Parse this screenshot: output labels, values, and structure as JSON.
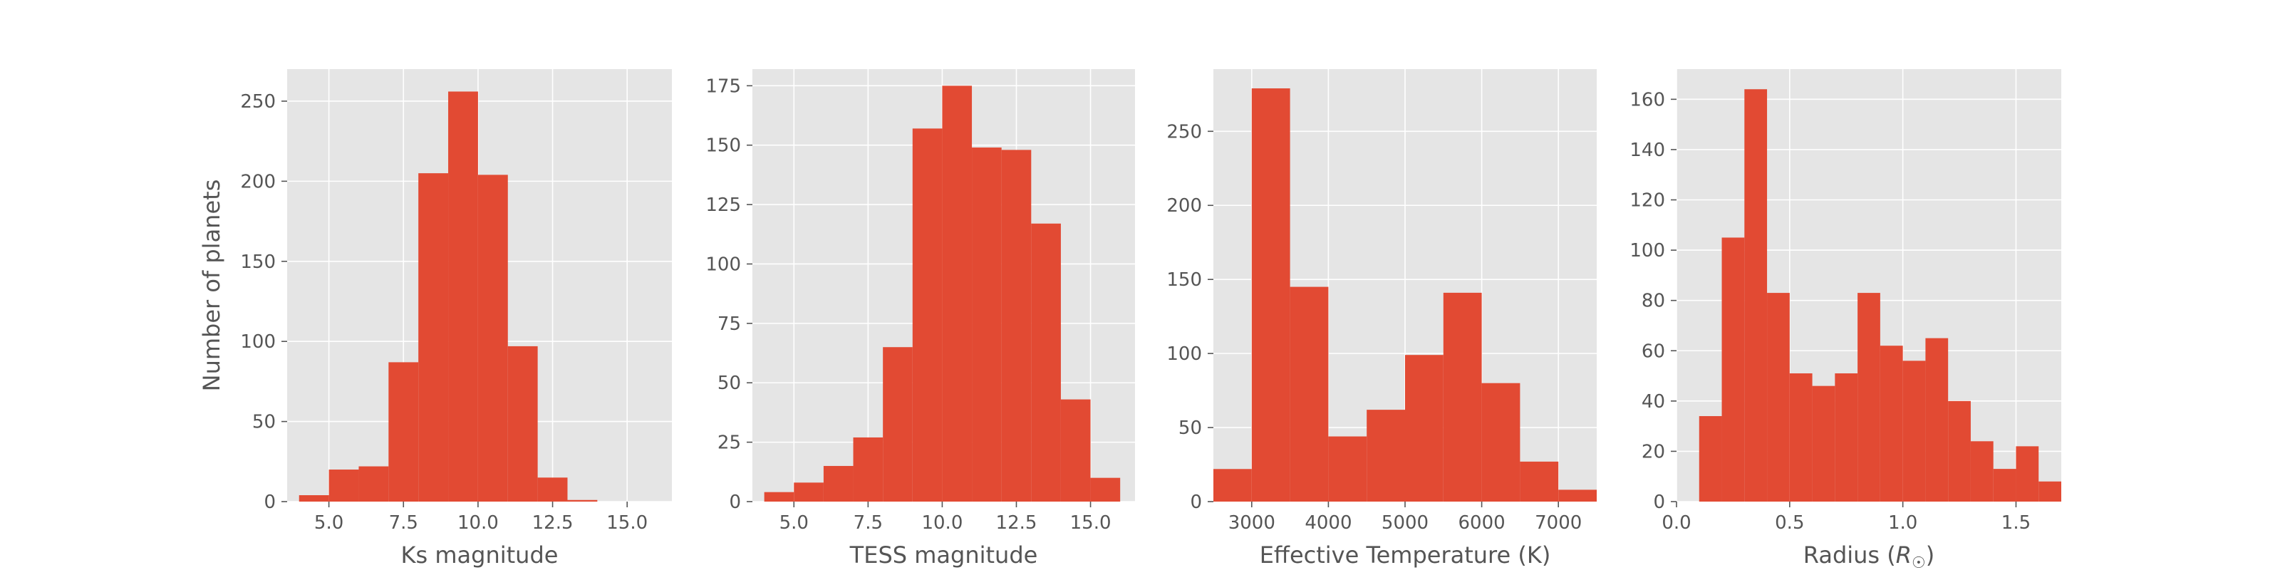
{
  "chart_data": [
    {
      "type": "bar",
      "xlabel": "Ks magnitude",
      "ylabel": "Number of planets",
      "xlim": [
        3.6,
        16.5
      ],
      "ylim": [
        0,
        270
      ],
      "xticks": [
        "5.0",
        "7.5",
        "10.0",
        "12.5",
        "15.0"
      ],
      "yticks": [
        "0",
        "50",
        "100",
        "150",
        "200",
        "250"
      ],
      "bins": [
        {
          "x0": 4.0,
          "x1": 5.0,
          "value": 4
        },
        {
          "x0": 5.0,
          "x1": 6.0,
          "value": 20
        },
        {
          "x0": 6.0,
          "x1": 7.0,
          "value": 22
        },
        {
          "x0": 7.0,
          "x1": 8.0,
          "value": 87
        },
        {
          "x0": 8.0,
          "x1": 9.0,
          "value": 205
        },
        {
          "x0": 9.0,
          "x1": 10.0,
          "value": 256
        },
        {
          "x0": 10.0,
          "x1": 11.0,
          "value": 204
        },
        {
          "x0": 11.0,
          "x1": 12.0,
          "value": 97
        },
        {
          "x0": 12.0,
          "x1": 13.0,
          "value": 15
        },
        {
          "x0": 13.0,
          "x1": 14.0,
          "value": 1
        }
      ]
    },
    {
      "type": "bar",
      "xlabel": "TESS magnitude",
      "ylabel": "",
      "xlim": [
        3.6,
        16.5
      ],
      "ylim": [
        0,
        182
      ],
      "xticks": [
        "5.0",
        "7.5",
        "10.0",
        "12.5",
        "15.0"
      ],
      "yticks": [
        "0",
        "25",
        "50",
        "75",
        "100",
        "125",
        "150",
        "175"
      ],
      "bins": [
        {
          "x0": 4.0,
          "x1": 5.0,
          "value": 4
        },
        {
          "x0": 5.0,
          "x1": 6.0,
          "value": 8
        },
        {
          "x0": 6.0,
          "x1": 7.0,
          "value": 15
        },
        {
          "x0": 7.0,
          "x1": 8.0,
          "value": 27
        },
        {
          "x0": 8.0,
          "x1": 9.0,
          "value": 65
        },
        {
          "x0": 9.0,
          "x1": 10.0,
          "value": 157
        },
        {
          "x0": 10.0,
          "x1": 11.0,
          "value": 175
        },
        {
          "x0": 11.0,
          "x1": 12.0,
          "value": 149
        },
        {
          "x0": 12.0,
          "x1": 13.0,
          "value": 148
        },
        {
          "x0": 13.0,
          "x1": 14.0,
          "value": 117
        },
        {
          "x0": 14.0,
          "x1": 15.0,
          "value": 43
        },
        {
          "x0": 15.0,
          "x1": 16.0,
          "value": 10
        }
      ]
    },
    {
      "type": "bar",
      "xlabel": "Effective Temperature (K)",
      "ylabel": "",
      "xlim": [
        2500,
        7500
      ],
      "ylim": [
        0,
        292
      ],
      "xticks": [
        "3000",
        "4000",
        "5000",
        "6000",
        "7000"
      ],
      "yticks": [
        "0",
        "50",
        "100",
        "150",
        "200",
        "250"
      ],
      "bins": [
        {
          "x0": 2500,
          "x1": 3000,
          "value": 22
        },
        {
          "x0": 3000,
          "x1": 3500,
          "value": 279
        },
        {
          "x0": 3500,
          "x1": 4000,
          "value": 145
        },
        {
          "x0": 4000,
          "x1": 4500,
          "value": 44
        },
        {
          "x0": 4500,
          "x1": 5000,
          "value": 62
        },
        {
          "x0": 5000,
          "x1": 5500,
          "value": 99
        },
        {
          "x0": 5500,
          "x1": 6000,
          "value": 141
        },
        {
          "x0": 6000,
          "x1": 6500,
          "value": 80
        },
        {
          "x0": 6500,
          "x1": 7000,
          "value": 27
        },
        {
          "x0": 7000,
          "x1": 7500,
          "value": 8
        }
      ]
    },
    {
      "type": "bar",
      "xlabel": "Radius (",
      "xlabel_symbol": "R",
      "xlabel_subscript": "☉",
      "xlabel_suffix": ")",
      "ylabel": "",
      "xlim": [
        0,
        1.7
      ],
      "ylim": [
        0,
        172
      ],
      "xticks": [
        "0.0",
        "0.5",
        "1.0",
        "1.5"
      ],
      "yticks": [
        "0",
        "20",
        "40",
        "60",
        "80",
        "100",
        "120",
        "140",
        "160"
      ],
      "bins": [
        {
          "x0": 0.1,
          "x1": 0.2,
          "value": 34
        },
        {
          "x0": 0.2,
          "x1": 0.3,
          "value": 105
        },
        {
          "x0": 0.3,
          "x1": 0.4,
          "value": 164
        },
        {
          "x0": 0.4,
          "x1": 0.5,
          "value": 83
        },
        {
          "x0": 0.5,
          "x1": 0.6,
          "value": 51
        },
        {
          "x0": 0.6,
          "x1": 0.7,
          "value": 46
        },
        {
          "x0": 0.7,
          "x1": 0.8,
          "value": 51
        },
        {
          "x0": 0.8,
          "x1": 0.9,
          "value": 83
        },
        {
          "x0": 0.9,
          "x1": 1.0,
          "value": 62
        },
        {
          "x0": 1.0,
          "x1": 1.1,
          "value": 56
        },
        {
          "x0": 1.1,
          "x1": 1.2,
          "value": 65
        },
        {
          "x0": 1.2,
          "x1": 1.3,
          "value": 40
        },
        {
          "x0": 1.3,
          "x1": 1.4,
          "value": 24
        },
        {
          "x0": 1.4,
          "x1": 1.5,
          "value": 13
        },
        {
          "x0": 1.5,
          "x1": 1.6,
          "value": 22
        },
        {
          "x0": 1.6,
          "x1": 1.7,
          "value": 8
        }
      ]
    }
  ],
  "style": {
    "bar_color": "#E24A33",
    "panel_background": "#E5E5E5",
    "grid_color": "#FFFFFF",
    "tick_color": "#555555",
    "grid": true
  }
}
